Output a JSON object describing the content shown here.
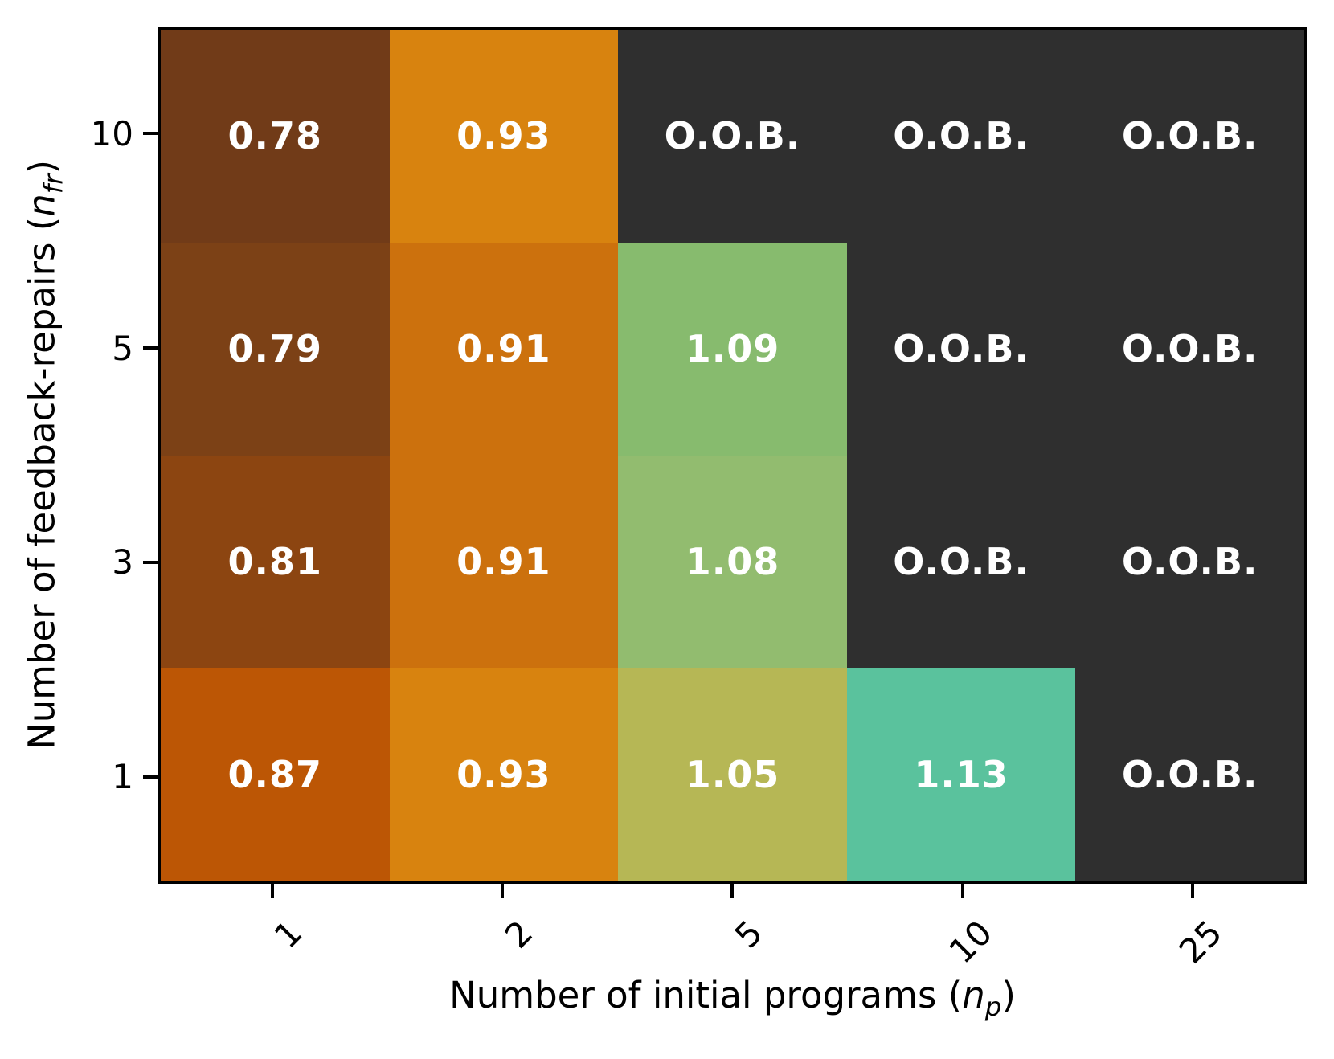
{
  "figure": {
    "background": "#ffffff",
    "spine_color": "#000000",
    "tick_color": "#000000",
    "cell_text_color": "#ffffff",
    "oob_color": "#2f2f2f"
  },
  "chart_data": {
    "type": "heatmap",
    "title": "",
    "xlabel": "Number of initial programs (n_p)",
    "ylabel": "Number of feedback-repairs (n_fr)",
    "xlabel_parts": {
      "prefix": "Number of initial programs (",
      "var": "n",
      "sub": "p",
      "suffix": ")"
    },
    "ylabel_parts": {
      "prefix": "Number of feedback-repairs (",
      "var": "n",
      "sub": "fr",
      "suffix": ")"
    },
    "x_categories": [
      "1",
      "2",
      "5",
      "10",
      "25"
    ],
    "y_categories": [
      "10",
      "5",
      "3",
      "1"
    ],
    "oob_label": "O.O.B.",
    "values": [
      [
        0.78,
        0.93,
        null,
        null,
        null
      ],
      [
        0.79,
        0.91,
        1.09,
        null,
        null
      ],
      [
        0.81,
        0.91,
        1.08,
        null,
        null
      ],
      [
        0.87,
        0.93,
        1.05,
        1.13,
        null
      ]
    ],
    "rows": [
      {
        "y": "10",
        "cells": [
          {
            "label": "0.78",
            "value": 0.78,
            "color": "#713b18"
          },
          {
            "label": "0.93",
            "value": 0.93,
            "color": "#d8830f"
          },
          {
            "label": "O.O.B.",
            "value": null,
            "color": "#2f2f2f"
          },
          {
            "label": "O.O.B.",
            "value": null,
            "color": "#2f2f2f"
          },
          {
            "label": "O.O.B.",
            "value": null,
            "color": "#2f2f2f"
          }
        ]
      },
      {
        "y": "5",
        "cells": [
          {
            "label": "0.79",
            "value": 0.79,
            "color": "#7c4116"
          },
          {
            "label": "0.91",
            "value": 0.91,
            "color": "#cc710d"
          },
          {
            "label": "1.09",
            "value": 1.09,
            "color": "#87bb6e"
          },
          {
            "label": "O.O.B.",
            "value": null,
            "color": "#2f2f2f"
          },
          {
            "label": "O.O.B.",
            "value": null,
            "color": "#2f2f2f"
          }
        ]
      },
      {
        "y": "3",
        "cells": [
          {
            "label": "0.81",
            "value": 0.81,
            "color": "#8c4511"
          },
          {
            "label": "0.91",
            "value": 0.91,
            "color": "#cc710d"
          },
          {
            "label": "1.08",
            "value": 1.08,
            "color": "#92bc6f"
          },
          {
            "label": "O.O.B.",
            "value": null,
            "color": "#2f2f2f"
          },
          {
            "label": "O.O.B.",
            "value": null,
            "color": "#2f2f2f"
          }
        ]
      },
      {
        "y": "1",
        "cells": [
          {
            "label": "0.87",
            "value": 0.87,
            "color": "#bc5605"
          },
          {
            "label": "0.93",
            "value": 0.93,
            "color": "#d8830f"
          },
          {
            "label": "1.05",
            "value": 1.05,
            "color": "#b6b755"
          },
          {
            "label": "1.13",
            "value": 1.13,
            "color": "#5ac29d"
          },
          {
            "label": "O.O.B.",
            "value": null,
            "color": "#2f2f2f"
          }
        ]
      }
    ]
  }
}
